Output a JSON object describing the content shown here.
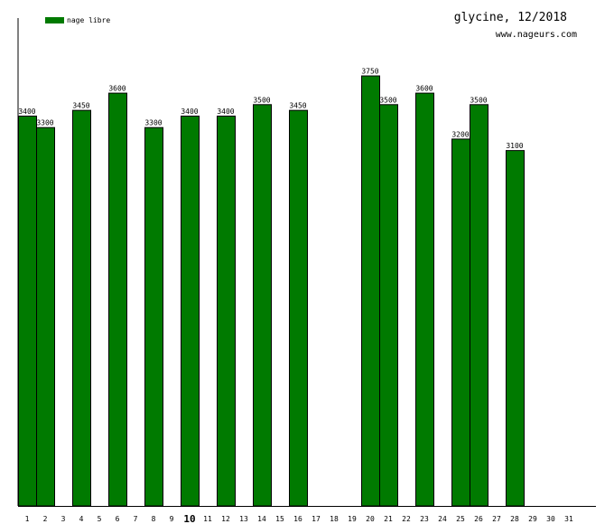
{
  "chart_data": {
    "type": "bar",
    "title": "glycine, 12/2018",
    "subtitle": "www.nageurs.com",
    "legend": {
      "label": "nage libre",
      "color": "#007a00",
      "placement": "top-left"
    },
    "categories": [
      "1",
      "2",
      "3",
      "4",
      "5",
      "6",
      "7",
      "8",
      "9",
      "10",
      "11",
      "12",
      "13",
      "14",
      "15",
      "16",
      "17",
      "18",
      "19",
      "20",
      "21",
      "22",
      "23",
      "24",
      "25",
      "26",
      "27",
      "28",
      "29",
      "30",
      "31"
    ],
    "highlight_category": "10",
    "series": [
      {
        "name": "nage libre",
        "color": "#007a00",
        "values": [
          3400,
          3300,
          null,
          3450,
          null,
          3600,
          null,
          3300,
          null,
          3400,
          null,
          3400,
          null,
          3500,
          null,
          3450,
          null,
          null,
          null,
          3750,
          3500,
          null,
          3600,
          null,
          3200,
          3500,
          null,
          3100,
          null,
          null,
          null
        ]
      }
    ],
    "ylim": [
      0,
      4250
    ],
    "grid": false,
    "xlabel": "",
    "ylabel": ""
  }
}
